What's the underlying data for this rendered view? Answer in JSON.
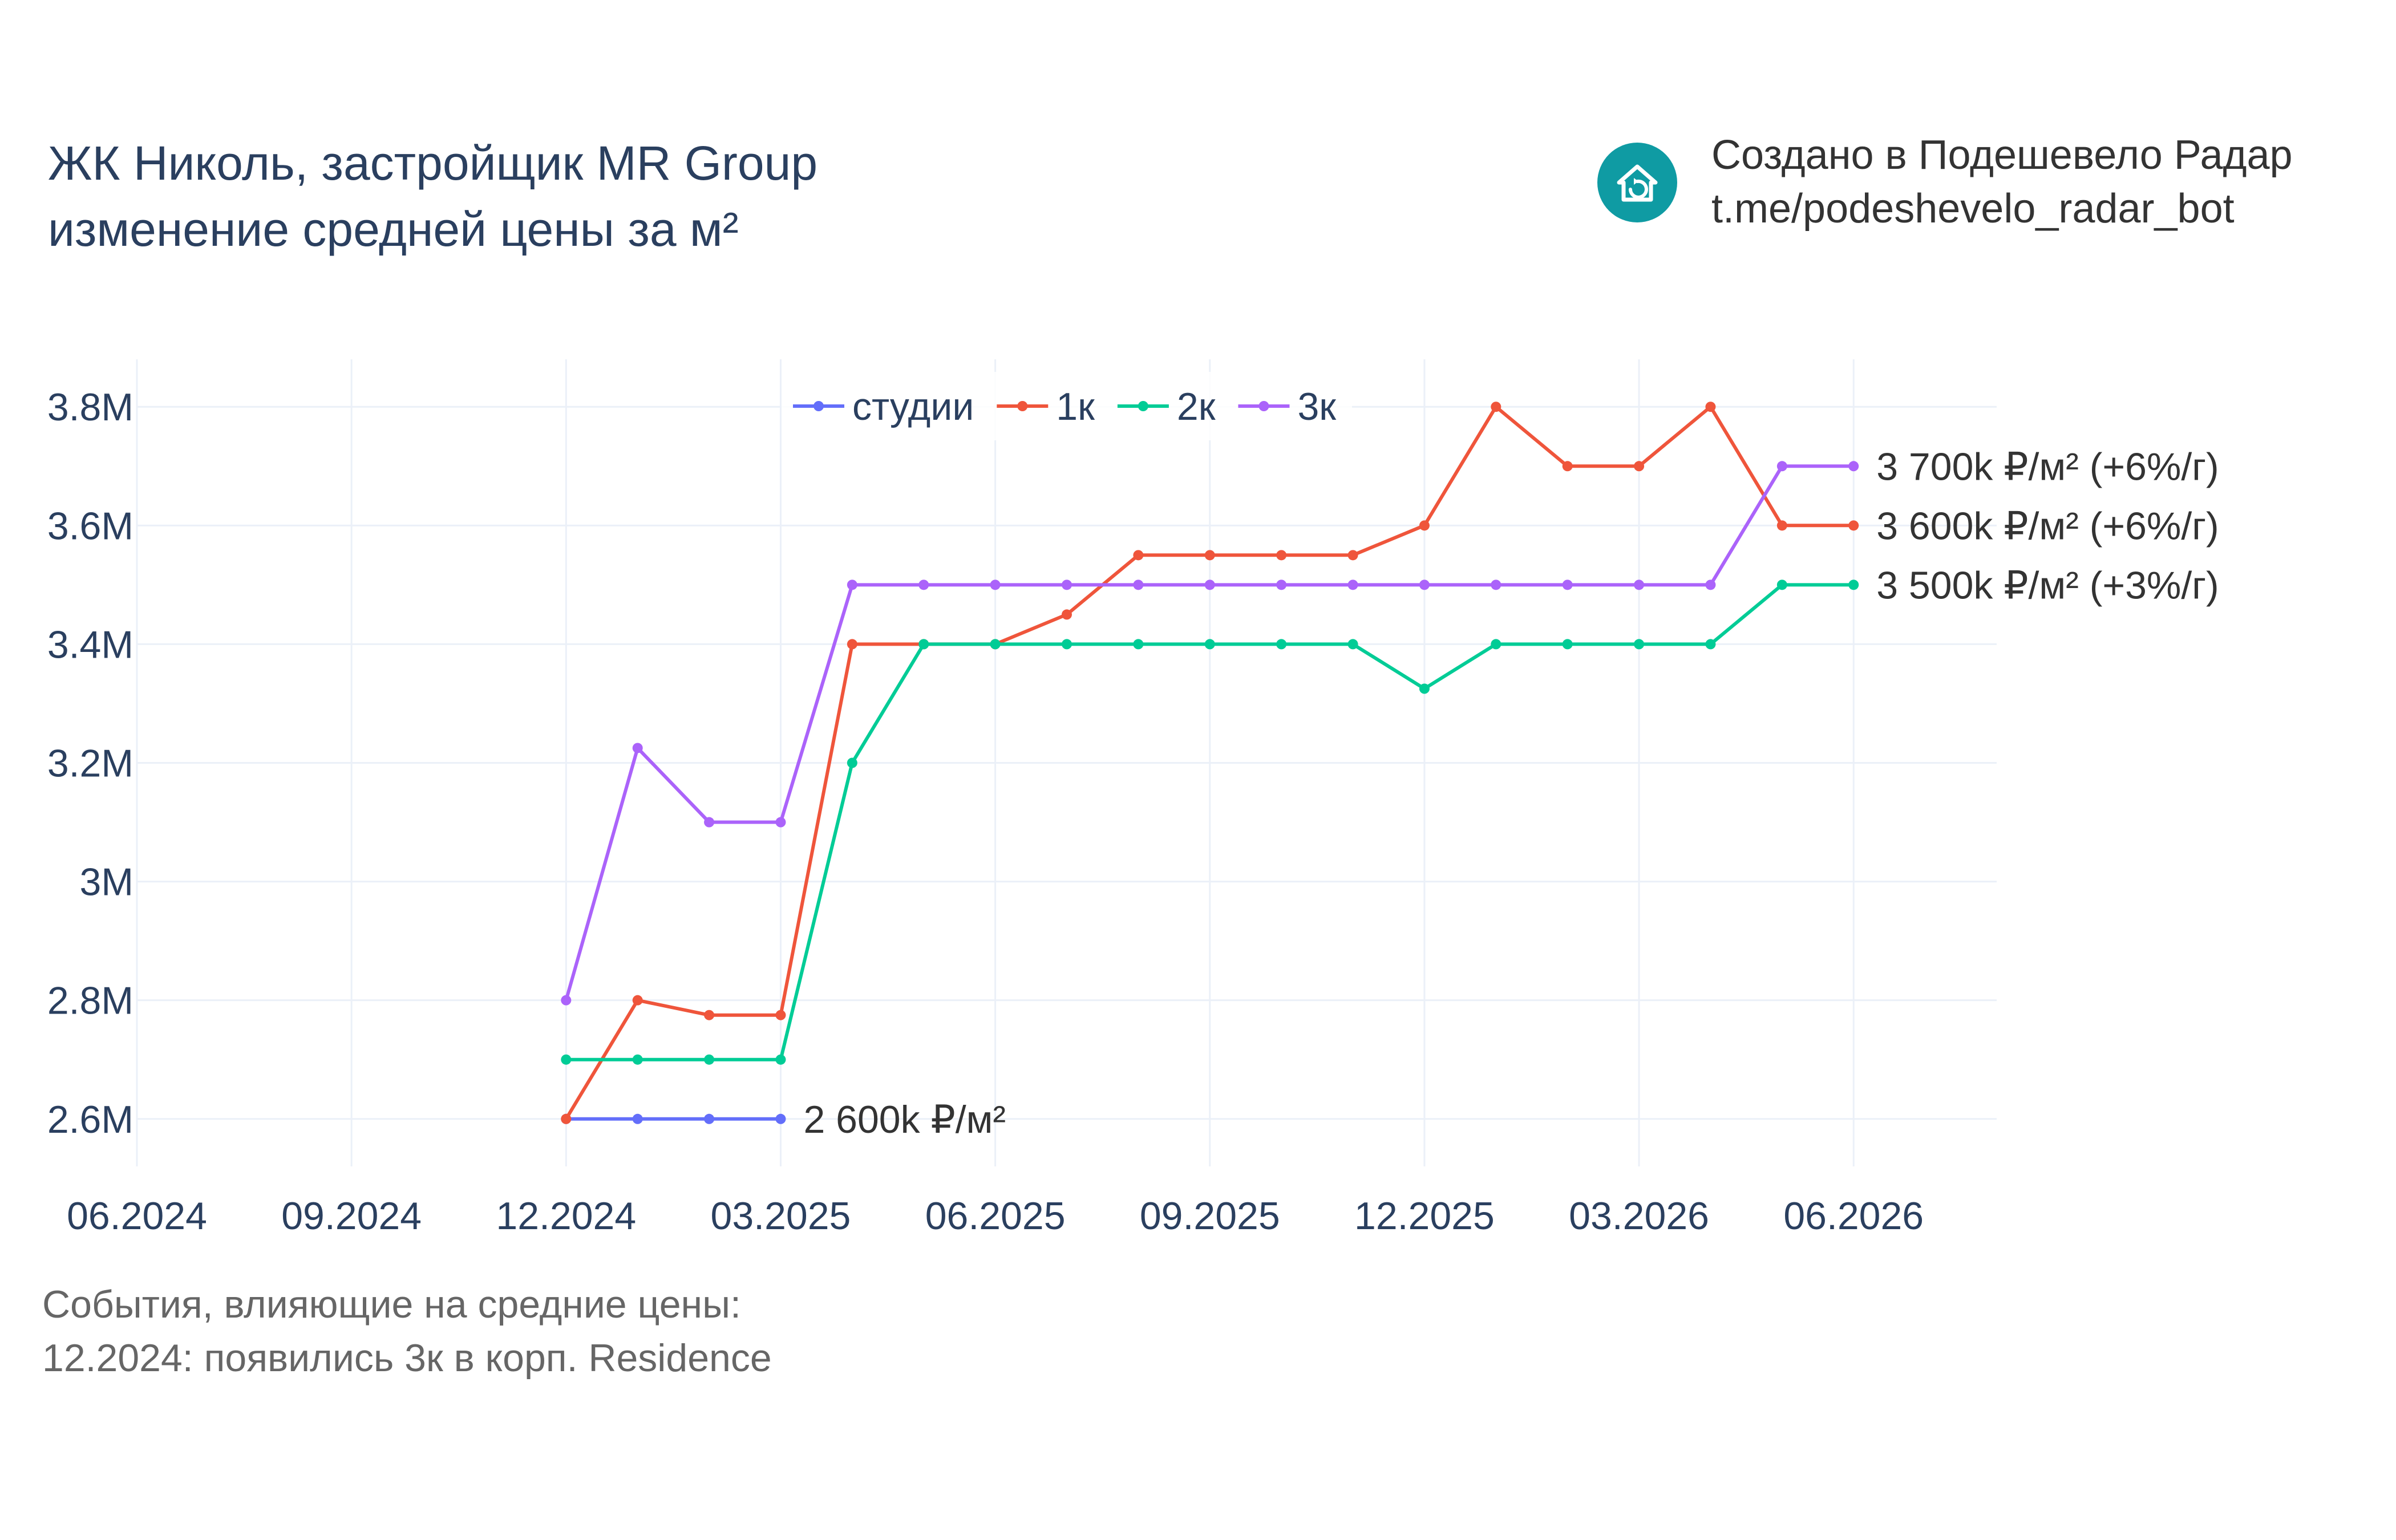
{
  "header": {
    "title_line1": "ЖК Николь, застройщик MR Group",
    "title_line2": "изменение средней цены за м²"
  },
  "brand": {
    "line1": "Создано в Подешевело Радар",
    "line2": "t.me/podeshevelo_radar_bot",
    "icon": "house-refresh-icon",
    "color": "#0f9ba3"
  },
  "events": {
    "line1": "События, влияющие на средние цены:",
    "line2": "12.2024: появились 3к в корп. Residence"
  },
  "chart_data": {
    "type": "line",
    "title": "",
    "xlabel": "",
    "ylabel": "",
    "x_ticks": [
      "06.2024",
      "09.2024",
      "12.2024",
      "03.2025",
      "06.2025",
      "09.2025",
      "12.2025",
      "03.2026",
      "06.2026"
    ],
    "x_range": [
      "2024-06",
      "2026-08"
    ],
    "y_ticks": [
      2600000,
      2800000,
      3000000,
      3200000,
      3400000,
      3600000,
      3800000
    ],
    "y_tick_labels": [
      "2.6M",
      "2.8M",
      "3M",
      "3.2M",
      "3.4M",
      "3.6M",
      "3.8M"
    ],
    "ylim": [
      2520000,
      3880000
    ],
    "grid": true,
    "legend_position": "top-center",
    "series": [
      {
        "name": "студии",
        "color": "#636efa",
        "x": [
          "2024-12",
          "2025-01",
          "2025-02",
          "2025-03"
        ],
        "values": [
          2600000,
          2600000,
          2600000,
          2600000
        ],
        "end_label": "2 600k ₽/м²"
      },
      {
        "name": "1к",
        "color": "#ef553b",
        "x": [
          "2024-12",
          "2025-01",
          "2025-02",
          "2025-03",
          "2025-04",
          "2025-05",
          "2025-06",
          "2025-07",
          "2025-08",
          "2025-09",
          "2025-10",
          "2025-11",
          "2025-12",
          "2026-01",
          "2026-02",
          "2026-03",
          "2026-04",
          "2026-05",
          "2026-06"
        ],
        "values": [
          2600000,
          2800000,
          2775000,
          2775000,
          3400000,
          3400000,
          3400000,
          3450000,
          3550000,
          3550000,
          3550000,
          3550000,
          3600000,
          3800000,
          3700000,
          3700000,
          3800000,
          3600000,
          3600000
        ],
        "end_label": "3 600k ₽/м² (+6%/г)"
      },
      {
        "name": "2к",
        "color": "#00cc96",
        "x": [
          "2024-12",
          "2025-01",
          "2025-02",
          "2025-03",
          "2025-04",
          "2025-05",
          "2025-06",
          "2025-07",
          "2025-08",
          "2025-09",
          "2025-10",
          "2025-11",
          "2025-12",
          "2026-01",
          "2026-02",
          "2026-03",
          "2026-04",
          "2026-05",
          "2026-06"
        ],
        "values": [
          2700000,
          2700000,
          2700000,
          2700000,
          3200000,
          3400000,
          3400000,
          3400000,
          3400000,
          3400000,
          3400000,
          3400000,
          3325000,
          3400000,
          3400000,
          3400000,
          3400000,
          3500000,
          3500000
        ],
        "end_label": "3 500k ₽/м² (+3%/г)"
      },
      {
        "name": "3к",
        "color": "#ab63fa",
        "x": [
          "2024-12",
          "2025-01",
          "2025-02",
          "2025-03",
          "2025-04",
          "2025-05",
          "2025-06",
          "2025-07",
          "2025-08",
          "2025-09",
          "2025-10",
          "2025-11",
          "2025-12",
          "2026-01",
          "2026-02",
          "2026-03",
          "2026-04",
          "2026-05",
          "2026-06"
        ],
        "values": [
          2800000,
          3225000,
          3100000,
          3100000,
          3500000,
          3500000,
          3500000,
          3500000,
          3500000,
          3500000,
          3500000,
          3500000,
          3500000,
          3500000,
          3500000,
          3500000,
          3500000,
          3700000,
          3700000
        ],
        "end_label": "3 700k ₽/м² (+6%/г)"
      }
    ]
  }
}
